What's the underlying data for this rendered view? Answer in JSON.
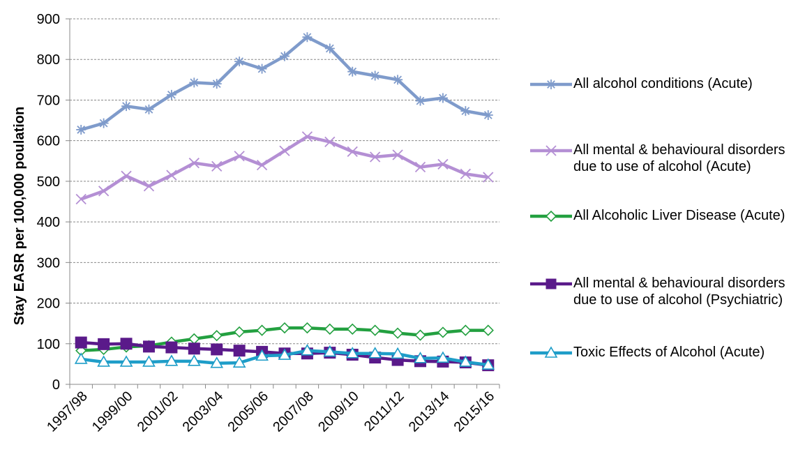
{
  "chart_data": {
    "type": "line",
    "title": "",
    "xlabel": "",
    "ylabel": "Stay EASR per 100,000 poulation",
    "ylim": [
      0,
      900
    ],
    "yticks": [
      0,
      100,
      200,
      300,
      400,
      500,
      600,
      700,
      800,
      900
    ],
    "grid": true,
    "legend_position": "right",
    "categories": [
      "1997/98",
      "1998/99",
      "1999/00",
      "2000/01",
      "2001/02",
      "2002/03",
      "2003/04",
      "2004/05",
      "2005/06",
      "2006/07",
      "2007/08",
      "2008/09",
      "2009/10",
      "2010/11",
      "2011/12",
      "2012/13",
      "2013/14",
      "2014/15",
      "2015/16"
    ],
    "x_tick_labels": [
      "1997/98",
      "1999/00",
      "2001/02",
      "2003/04",
      "2005/06",
      "2007/08",
      "2009/10",
      "2011/12",
      "2013/14",
      "2015/16"
    ],
    "series": [
      {
        "name": "All alcohol conditions (Acute)",
        "color": "#7f9bcb",
        "marker": "asterisk",
        "values": [
          627,
          643,
          685,
          677,
          713,
          743,
          740,
          795,
          777,
          808,
          855,
          827,
          770,
          760,
          750,
          698,
          705,
          673,
          663
        ]
      },
      {
        "name": "All mental & behavioural disorders due to use of alcohol (Acute)",
        "color": "#b48fd4",
        "marker": "x",
        "values": [
          456,
          476,
          513,
          488,
          515,
          545,
          537,
          562,
          540,
          575,
          610,
          597,
          573,
          560,
          565,
          535,
          542,
          518,
          510
        ]
      },
      {
        "name": "All Alcoholic Liver Disease (Acute)",
        "color": "#23a040",
        "marker": "diamond",
        "values": [
          83,
          86,
          92,
          95,
          104,
          112,
          120,
          129,
          133,
          139,
          139,
          136,
          136,
          133,
          126,
          121,
          128,
          133,
          133
        ]
      },
      {
        "name": "All mental & behavioural disorders due to use of alcohol (Psychiatric)",
        "color": "#5a1a8a",
        "marker": "square",
        "values": [
          103,
          99,
          100,
          93,
          91,
          88,
          86,
          83,
          80,
          76,
          76,
          78,
          73,
          66,
          60,
          57,
          56,
          54,
          47
        ]
      },
      {
        "name": "Toxic Effects of Alcohol (Acute)",
        "color": "#1e9dc8",
        "marker": "triangle",
        "values": [
          62,
          55,
          55,
          55,
          57,
          57,
          52,
          53,
          70,
          72,
          83,
          80,
          76,
          76,
          75,
          64,
          65,
          55,
          48
        ]
      }
    ]
  }
}
